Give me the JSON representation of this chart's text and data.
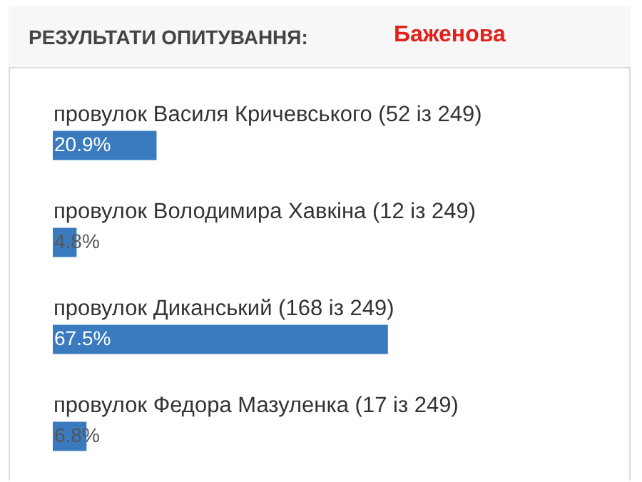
{
  "chart_data": {
    "type": "bar",
    "orientation": "horizontal",
    "title": "РЕЗУЛЬТАТИ ОПИТУВАННЯ:",
    "subtitle": "Баженова",
    "categories": [
      "провулок Василя Кричевського (52 із 249)",
      "провулок Володимира Хавкіна (12 із 249)",
      "провулок Диканський (168 із 249)",
      "провулок Федора Мазуленка (17 із 249)"
    ],
    "values": [
      20.9,
      4.8,
      67.5,
      6.8
    ],
    "value_labels": [
      "20.9%",
      "4.8%",
      "67.5%",
      "6.8%"
    ],
    "color": "#3a7bbf",
    "xlim": [
      0,
      100
    ],
    "tick_labels": "y"
  }
}
